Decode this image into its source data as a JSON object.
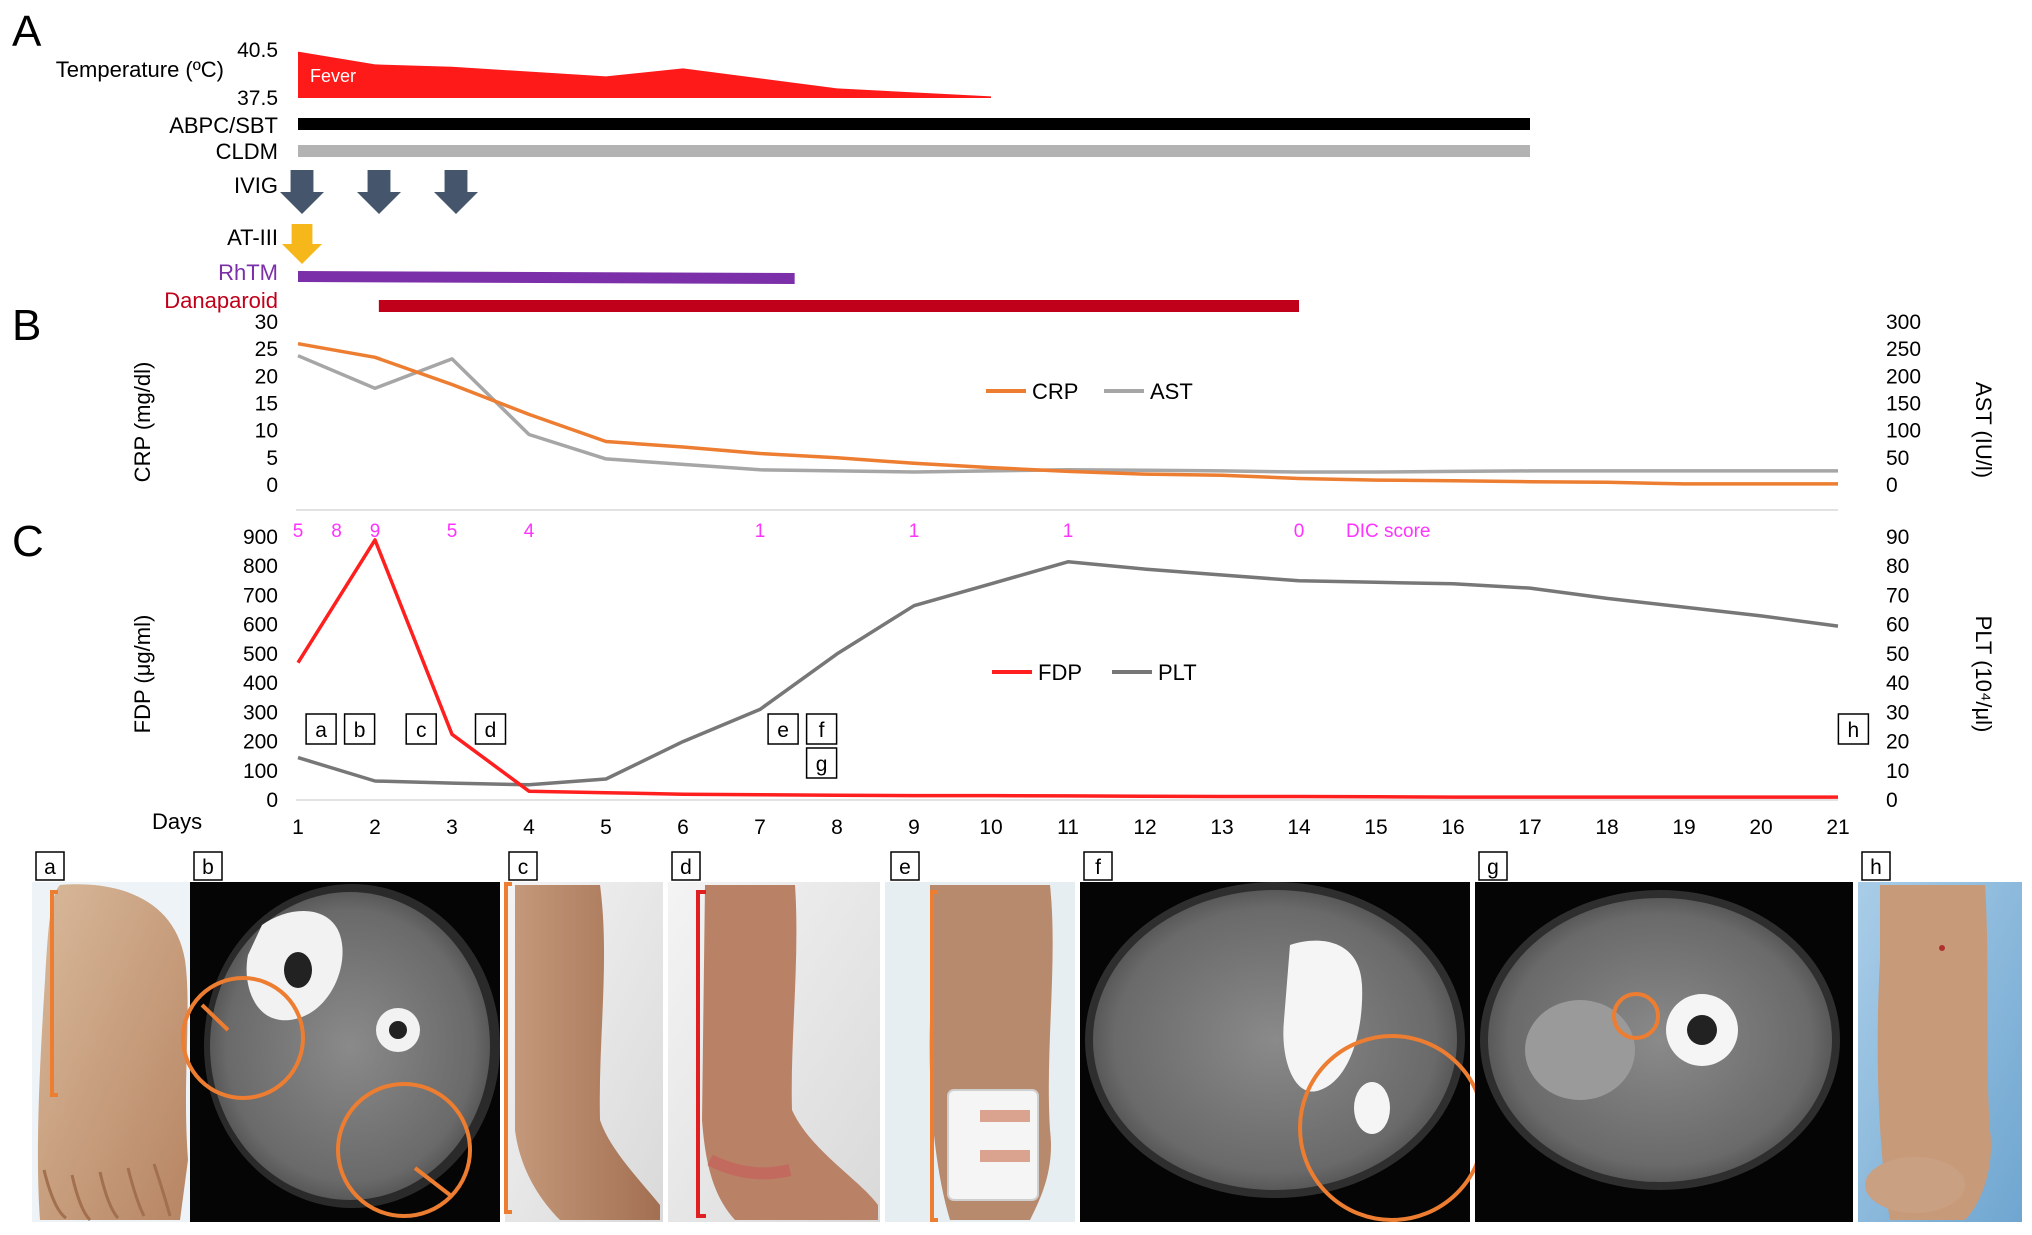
{
  "colors": {
    "fever": "#ff1a1a",
    "abpc": "#000000",
    "cldm": "#b3b3b3",
    "ivig": "#45556b",
    "at3": "#f6b71b",
    "rhtm": "#7b2fa8",
    "danaparoid": "#c0001a",
    "crp": "#ed7d31",
    "ast": "#a6a6a6",
    "fdp": "#ff1f1f",
    "plt": "#777777",
    "dic": "#ff33ff",
    "annotation": "#ed7d31",
    "annotation_red": "#e02020"
  },
  "panels": {
    "A": "A",
    "B": "B",
    "C": "C"
  },
  "timeline": {
    "temperature_label": "Temperature (ºC)",
    "temp_max": "40.5",
    "temp_min": "37.5",
    "fever_label": "Fever",
    "fever_series": [
      {
        "day": 1,
        "temp": 40.4
      },
      {
        "day": 2,
        "temp": 39.6
      },
      {
        "day": 3,
        "temp": 39.45
      },
      {
        "day": 5,
        "temp": 38.85
      },
      {
        "day": 6,
        "temp": 39.35
      },
      {
        "day": 8,
        "temp": 38.1
      },
      {
        "day": 10,
        "temp": 37.6
      }
    ],
    "therapies": [
      {
        "label": "ABPC/SBT",
        "start": 1,
        "end": 17,
        "color_key": "abpc"
      },
      {
        "label": "CLDM",
        "start": 1,
        "end": 17,
        "color_key": "cldm"
      },
      {
        "label": "RhTM",
        "start": 1,
        "end": 7.45,
        "color_key": "rhtm"
      },
      {
        "label": "Danaparoid",
        "start": 2.05,
        "end": 14,
        "color_key": "danaparoid"
      }
    ],
    "ivig_label": "IVIG",
    "ivig_days": [
      1,
      2,
      3
    ],
    "at3_label": "AT-III",
    "at3_days": [
      1
    ]
  },
  "chart_data": [
    {
      "type": "line",
      "panel": "B",
      "x_label": "",
      "series": [
        {
          "name": "CRP",
          "axis": "left",
          "x": [
            1,
            2,
            3,
            4,
            5,
            6,
            7,
            8,
            9,
            10,
            11,
            12,
            13,
            14,
            15,
            16,
            17,
            18,
            19,
            20,
            21
          ],
          "y": [
            26,
            23.5,
            18.5,
            13,
            8,
            7,
            5.8,
            5,
            4,
            3.2,
            2.5,
            2,
            1.8,
            1.2,
            0.9,
            0.8,
            0.6,
            0.5,
            0.2,
            0.2,
            0.2
          ]
        },
        {
          "name": "AST",
          "axis": "right",
          "x": [
            1,
            2,
            3,
            4,
            5,
            6,
            7,
            8,
            9,
            10,
            11,
            12,
            13,
            14,
            15,
            16,
            17,
            18,
            19,
            20,
            21
          ],
          "y": [
            238,
            178,
            232,
            93,
            48,
            38,
            28,
            26,
            24,
            26,
            28,
            27,
            26,
            24,
            24,
            25,
            26,
            26,
            26,
            26,
            26
          ]
        }
      ],
      "left_axis": {
        "label": "CRP (mg/dl)",
        "min": 0,
        "max": 30,
        "ticks": [
          0,
          5,
          10,
          15,
          20,
          25,
          30
        ]
      },
      "right_axis": {
        "label": "AST (IU/l)",
        "min": 0,
        "max": 300,
        "ticks": [
          0,
          50,
          100,
          150,
          200,
          250,
          300
        ]
      },
      "legend": {
        "position": "center",
        "entries": [
          "CRP",
          "AST"
        ]
      },
      "grid": false
    },
    {
      "type": "line",
      "panel": "C",
      "series": [
        {
          "name": "FDP",
          "axis": "left",
          "x": [
            1,
            2,
            3,
            4,
            5,
            6,
            7,
            8,
            9,
            10,
            11,
            12,
            13,
            14,
            15,
            16,
            17,
            18,
            19,
            20,
            21
          ],
          "y": [
            470,
            890,
            225,
            30,
            25,
            20,
            18,
            16,
            15,
            15,
            14,
            13,
            12,
            12,
            11,
            10,
            10,
            10,
            10,
            10,
            10
          ]
        },
        {
          "name": "PLT",
          "axis": "right",
          "x": [
            1,
            2,
            3,
            4,
            5,
            6,
            7,
            8,
            9,
            10,
            11,
            12,
            13,
            14,
            15,
            16,
            17,
            18,
            19,
            20,
            21
          ],
          "y": [
            14.5,
            6.5,
            5.8,
            5.2,
            7.2,
            20,
            31,
            50,
            66.5,
            74,
            81.5,
            79,
            77,
            75,
            74.5,
            74,
            72.5,
            69,
            66,
            63,
            59.5
          ]
        }
      ],
      "left_axis": {
        "label": "FDP (μg/ml)",
        "min": 0,
        "max": 900,
        "ticks": [
          0,
          100,
          200,
          300,
          400,
          500,
          600,
          700,
          800,
          900
        ]
      },
      "right_axis": {
        "label": "PLT (10⁴/μl)",
        "min": 0,
        "max": 90,
        "ticks": [
          0,
          10,
          20,
          30,
          40,
          50,
          60,
          70,
          80,
          90
        ]
      },
      "x_axis": {
        "label": "Days",
        "ticks": [
          1,
          2,
          3,
          4,
          5,
          6,
          7,
          8,
          9,
          10,
          11,
          12,
          13,
          14,
          15,
          16,
          17,
          18,
          19,
          20,
          21
        ]
      },
      "legend": {
        "position": "center",
        "entries": [
          "FDP",
          "PLT"
        ]
      },
      "grid": false,
      "dic_score": {
        "label": "DIC score",
        "points": [
          {
            "day": 1,
            "value": "5"
          },
          {
            "day": 1.5,
            "value": "8"
          },
          {
            "day": 2,
            "value": "9"
          },
          {
            "day": 3,
            "value": "5"
          },
          {
            "day": 4,
            "value": "4"
          },
          {
            "day": 7,
            "value": "1"
          },
          {
            "day": 9,
            "value": "1"
          },
          {
            "day": 11,
            "value": "1"
          },
          {
            "day": 14,
            "value": "0"
          }
        ]
      },
      "event_markers": [
        {
          "label": "a",
          "day": 1.3,
          "row": 1
        },
        {
          "label": "b",
          "day": 1.8,
          "row": 1
        },
        {
          "label": "c",
          "day": 2.6,
          "row": 1
        },
        {
          "label": "d",
          "day": 3.5,
          "row": 1
        },
        {
          "label": "e",
          "day": 7.3,
          "row": 1
        },
        {
          "label": "f",
          "day": 7.8,
          "row": 1
        },
        {
          "label": "g",
          "day": 7.8,
          "row": 2
        },
        {
          "label": "h",
          "day": 21.2,
          "row": 1
        }
      ]
    }
  ],
  "photos": [
    {
      "label": "a",
      "kind": "photo",
      "subject": "foot"
    },
    {
      "label": "b",
      "kind": "ct",
      "subject": "lower-leg"
    },
    {
      "label": "c",
      "kind": "photo",
      "subject": "leg"
    },
    {
      "label": "d",
      "kind": "photo",
      "subject": "leg"
    },
    {
      "label": "e",
      "kind": "photo",
      "subject": "leg"
    },
    {
      "label": "f",
      "kind": "ct",
      "subject": "thigh"
    },
    {
      "label": "g",
      "kind": "ct",
      "subject": "thigh"
    },
    {
      "label": "h",
      "kind": "photo",
      "subject": "arm"
    }
  ]
}
